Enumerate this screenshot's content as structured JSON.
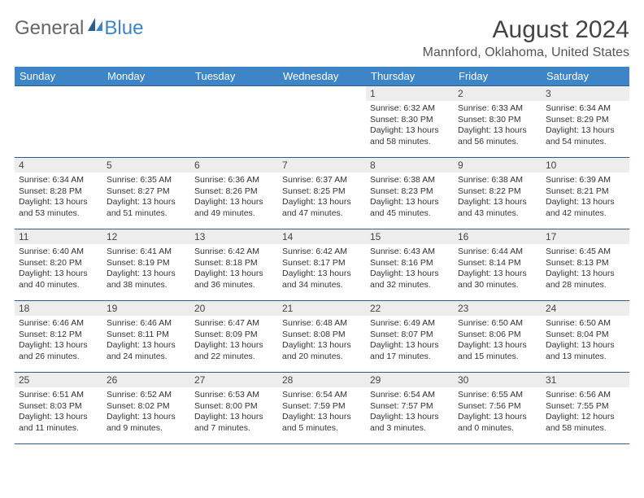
{
  "logo": {
    "part1": "General",
    "part2": "Blue"
  },
  "title": "August 2024",
  "location": "Mannford, Oklahoma, United States",
  "colors": {
    "header_bg": "#3d85c6",
    "header_text": "#ffffff",
    "border": "#2b5f8e",
    "daynum_bg": "#ededed",
    "body_bg": "#ffffff",
    "text": "#333333"
  },
  "fonts": {
    "title_size": 30,
    "location_size": 16,
    "header_size": 13,
    "daynum_size": 12,
    "body_size": 10.5
  },
  "day_headers": [
    "Sunday",
    "Monday",
    "Tuesday",
    "Wednesday",
    "Thursday",
    "Friday",
    "Saturday"
  ],
  "weeks": [
    [
      null,
      null,
      null,
      null,
      {
        "n": "1",
        "sr": "6:32 AM",
        "ss": "8:30 PM",
        "dl": "13 hours and 58 minutes."
      },
      {
        "n": "2",
        "sr": "6:33 AM",
        "ss": "8:30 PM",
        "dl": "13 hours and 56 minutes."
      },
      {
        "n": "3",
        "sr": "6:34 AM",
        "ss": "8:29 PM",
        "dl": "13 hours and 54 minutes."
      }
    ],
    [
      {
        "n": "4",
        "sr": "6:34 AM",
        "ss": "8:28 PM",
        "dl": "13 hours and 53 minutes."
      },
      {
        "n": "5",
        "sr": "6:35 AM",
        "ss": "8:27 PM",
        "dl": "13 hours and 51 minutes."
      },
      {
        "n": "6",
        "sr": "6:36 AM",
        "ss": "8:26 PM",
        "dl": "13 hours and 49 minutes."
      },
      {
        "n": "7",
        "sr": "6:37 AM",
        "ss": "8:25 PM",
        "dl": "13 hours and 47 minutes."
      },
      {
        "n": "8",
        "sr": "6:38 AM",
        "ss": "8:23 PM",
        "dl": "13 hours and 45 minutes."
      },
      {
        "n": "9",
        "sr": "6:38 AM",
        "ss": "8:22 PM",
        "dl": "13 hours and 43 minutes."
      },
      {
        "n": "10",
        "sr": "6:39 AM",
        "ss": "8:21 PM",
        "dl": "13 hours and 42 minutes."
      }
    ],
    [
      {
        "n": "11",
        "sr": "6:40 AM",
        "ss": "8:20 PM",
        "dl": "13 hours and 40 minutes."
      },
      {
        "n": "12",
        "sr": "6:41 AM",
        "ss": "8:19 PM",
        "dl": "13 hours and 38 minutes."
      },
      {
        "n": "13",
        "sr": "6:42 AM",
        "ss": "8:18 PM",
        "dl": "13 hours and 36 minutes."
      },
      {
        "n": "14",
        "sr": "6:42 AM",
        "ss": "8:17 PM",
        "dl": "13 hours and 34 minutes."
      },
      {
        "n": "15",
        "sr": "6:43 AM",
        "ss": "8:16 PM",
        "dl": "13 hours and 32 minutes."
      },
      {
        "n": "16",
        "sr": "6:44 AM",
        "ss": "8:14 PM",
        "dl": "13 hours and 30 minutes."
      },
      {
        "n": "17",
        "sr": "6:45 AM",
        "ss": "8:13 PM",
        "dl": "13 hours and 28 minutes."
      }
    ],
    [
      {
        "n": "18",
        "sr": "6:46 AM",
        "ss": "8:12 PM",
        "dl": "13 hours and 26 minutes."
      },
      {
        "n": "19",
        "sr": "6:46 AM",
        "ss": "8:11 PM",
        "dl": "13 hours and 24 minutes."
      },
      {
        "n": "20",
        "sr": "6:47 AM",
        "ss": "8:09 PM",
        "dl": "13 hours and 22 minutes."
      },
      {
        "n": "21",
        "sr": "6:48 AM",
        "ss": "8:08 PM",
        "dl": "13 hours and 20 minutes."
      },
      {
        "n": "22",
        "sr": "6:49 AM",
        "ss": "8:07 PM",
        "dl": "13 hours and 17 minutes."
      },
      {
        "n": "23",
        "sr": "6:50 AM",
        "ss": "8:06 PM",
        "dl": "13 hours and 15 minutes."
      },
      {
        "n": "24",
        "sr": "6:50 AM",
        "ss": "8:04 PM",
        "dl": "13 hours and 13 minutes."
      }
    ],
    [
      {
        "n": "25",
        "sr": "6:51 AM",
        "ss": "8:03 PM",
        "dl": "13 hours and 11 minutes."
      },
      {
        "n": "26",
        "sr": "6:52 AM",
        "ss": "8:02 PM",
        "dl": "13 hours and 9 minutes."
      },
      {
        "n": "27",
        "sr": "6:53 AM",
        "ss": "8:00 PM",
        "dl": "13 hours and 7 minutes."
      },
      {
        "n": "28",
        "sr": "6:54 AM",
        "ss": "7:59 PM",
        "dl": "13 hours and 5 minutes."
      },
      {
        "n": "29",
        "sr": "6:54 AM",
        "ss": "7:57 PM",
        "dl": "13 hours and 3 minutes."
      },
      {
        "n": "30",
        "sr": "6:55 AM",
        "ss": "7:56 PM",
        "dl": "13 hours and 0 minutes."
      },
      {
        "n": "31",
        "sr": "6:56 AM",
        "ss": "7:55 PM",
        "dl": "12 hours and 58 minutes."
      }
    ]
  ],
  "labels": {
    "sunrise": "Sunrise:",
    "sunset": "Sunset:",
    "daylight": "Daylight:"
  }
}
